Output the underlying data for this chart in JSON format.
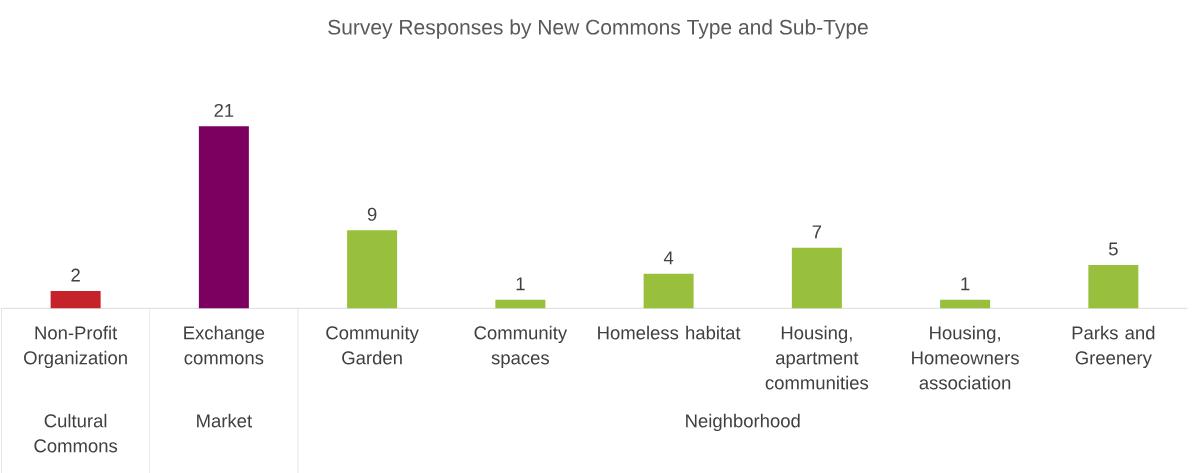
{
  "chart_data": {
    "type": "bar",
    "title": "Survey Responses by New Commons Type and Sub-Type",
    "categories": [
      "Non-Profit Organization",
      "Exchange commons",
      "Community Garden",
      "Community spaces",
      "Homeless habitat",
      "Housing, apartment communities",
      "Housing, Homeowners association",
      "Parks and Greenery"
    ],
    "values": [
      2,
      21,
      9,
      1,
      4,
      7,
      1,
      5
    ],
    "colors": [
      "#c5222a",
      "#7b0060",
      "#99c03c",
      "#99c03c",
      "#99c03c",
      "#99c03c",
      "#99c03c",
      "#99c03c"
    ],
    "data_labels": true,
    "annotations": [
      "Cultural Commons",
      "Market",
      "Neighborhood"
    ]
  }
}
